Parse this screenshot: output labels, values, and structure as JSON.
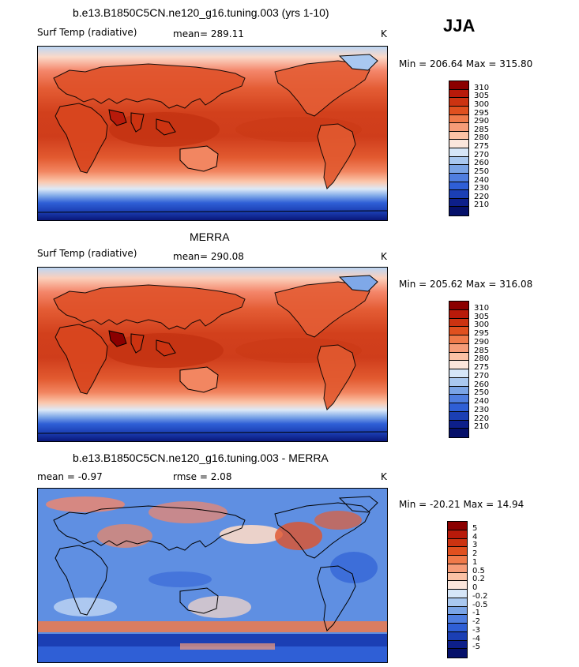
{
  "season": "JJA",
  "panels": [
    {
      "title": "b.e13.B1850C5CN.ne120_g16.tuning.003 (yrs 1-10)",
      "left_label": "Surf Temp (radiative)",
      "center_label": "mean= 289.11",
      "units": "K",
      "minmax": "Min = 206.64 Max = 315.80",
      "levels": [
        "310",
        "305",
        "300",
        "295",
        "290",
        "285",
        "280",
        "275",
        "270",
        "260",
        "250",
        "240",
        "230",
        "220",
        "210"
      ],
      "colors": [
        "#8b0000",
        "#b81a0a",
        "#cc3311",
        "#e0501f",
        "#f07a4a",
        "#f69c78",
        "#fbc2a5",
        "#fbe6dc",
        "#d6e6f8",
        "#a9c8f0",
        "#7aa4e6",
        "#4f7ee0",
        "#2f5fd6",
        "#1b3fb4",
        "#0d1f8a",
        "#05106a"
      ],
      "stats": {
        "mean": 289.11,
        "min": 206.64,
        "max": 315.8
      }
    },
    {
      "title": "MERRA",
      "left_label": "Surf Temp (radiative)",
      "center_label": "mean= 290.08",
      "units": "K",
      "minmax": "Min = 205.62 Max = 316.08",
      "levels": [
        "310",
        "305",
        "300",
        "295",
        "290",
        "285",
        "280",
        "275",
        "270",
        "260",
        "250",
        "240",
        "230",
        "220",
        "210"
      ],
      "colors": [
        "#8b0000",
        "#b81a0a",
        "#cc3311",
        "#e0501f",
        "#f07a4a",
        "#f69c78",
        "#fbc2a5",
        "#fbe6dc",
        "#d6e6f8",
        "#a9c8f0",
        "#7aa4e6",
        "#4f7ee0",
        "#2f5fd6",
        "#1b3fb4",
        "#0d1f8a",
        "#05106a"
      ],
      "stats": {
        "mean": 290.08,
        "min": 205.62,
        "max": 316.08
      }
    },
    {
      "title": "b.e13.B1850C5CN.ne120_g16.tuning.003 - MERRA",
      "left_label": "mean =   -0.97",
      "center_label": "rmse =    2.08",
      "units": "K",
      "minmax": "Min = -20.21 Max =  14.94",
      "levels": [
        "5",
        "4",
        "3",
        "2",
        "1",
        "0.5",
        "0.2",
        "0",
        "-0.2",
        "-0.5",
        "-1",
        "-2",
        "-3",
        "-4",
        "-5"
      ],
      "colors": [
        "#8b0000",
        "#b81a0a",
        "#cc3311",
        "#e0501f",
        "#f07a4a",
        "#f69c78",
        "#fbc2a5",
        "#fbe6dc",
        "#d6e6f8",
        "#a9c8f0",
        "#7aa4e6",
        "#4f7ee0",
        "#2f5fd6",
        "#1b3fb4",
        "#0d1f8a",
        "#05106a"
      ],
      "stats": {
        "mean": -0.97,
        "rmse": 2.08,
        "min": -20.21,
        "max": 14.94
      }
    }
  ]
}
